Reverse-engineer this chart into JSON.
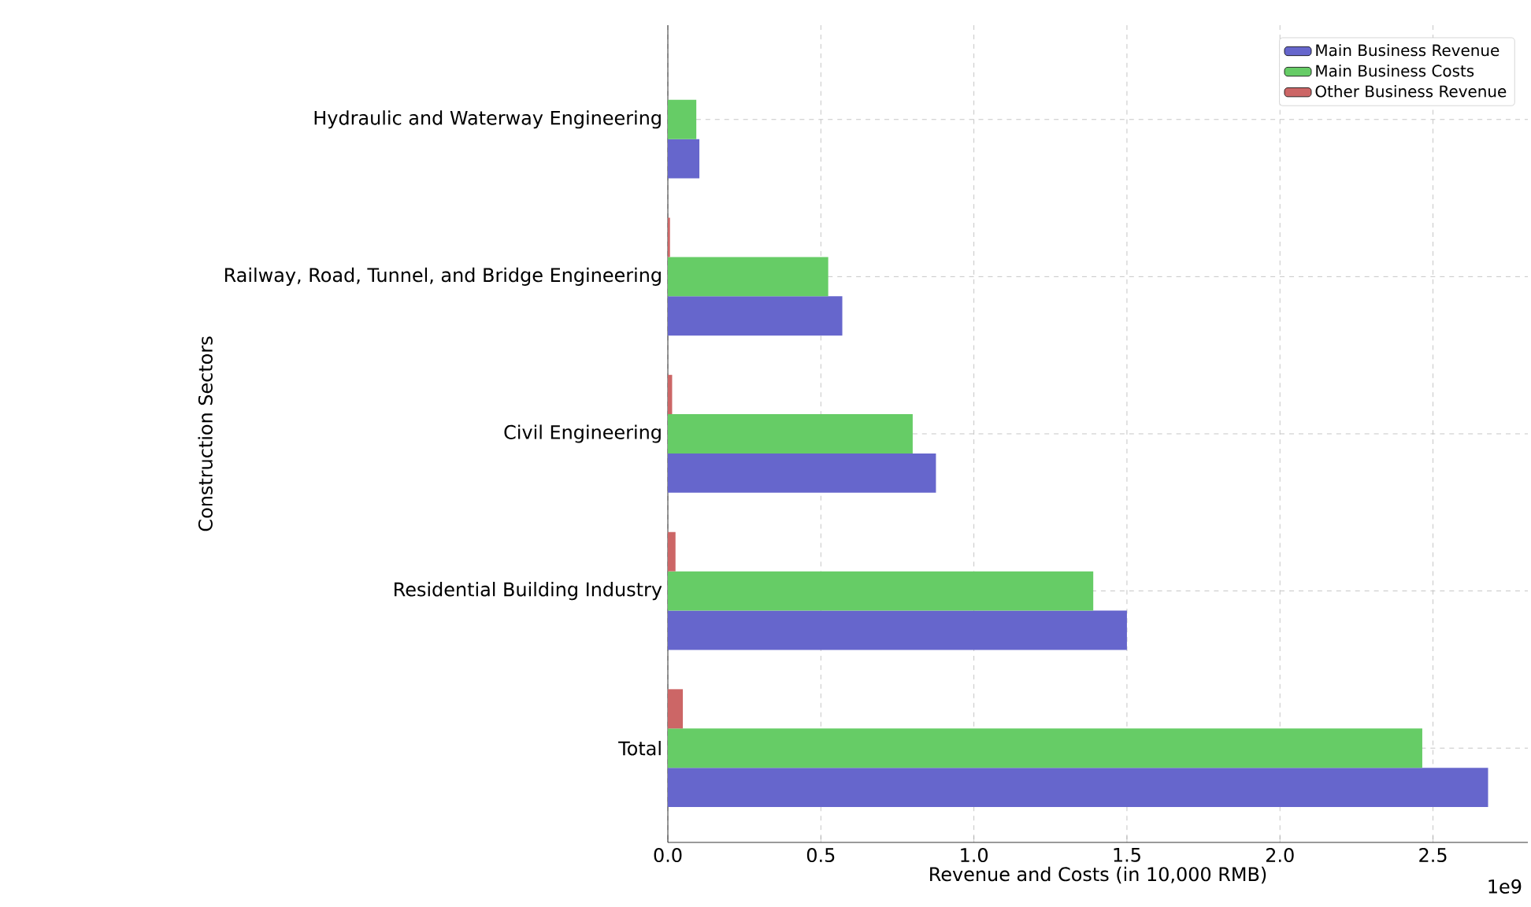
{
  "chart_data": {
    "type": "bar",
    "orientation": "horizontal",
    "categories": [
      "Hydraulic and Waterway Engineering",
      "Railway, Road, Tunnel, and Bridge Engineering",
      "Civil Engineering",
      "Residential Building Industry",
      "Total"
    ],
    "series": [
      {
        "name": "Main Business Revenue",
        "color": "#6666cc",
        "values": [
          0.103,
          0.57,
          0.876,
          1.5,
          2.68
        ]
      },
      {
        "name": "Main Business Costs",
        "color": "#66cc66",
        "values": [
          0.093,
          0.524,
          0.8,
          1.39,
          2.465
        ]
      },
      {
        "name": "Other Business Revenue",
        "color": "#cc6666",
        "values": [
          null,
          0.007,
          0.014,
          0.025,
          0.049
        ]
      }
    ],
    "xlabel": "Revenue and Costs (in 10,000 RMB)",
    "ylabel": "Construction Sectors",
    "xlim": [
      0,
      2.81
    ],
    "xticks": [
      {
        "value": 0,
        "label": "0.0"
      },
      0.5,
      {
        "value": 1,
        "label": "1.0"
      },
      1.5,
      {
        "value": 2,
        "label": "2.0"
      },
      2.5
    ],
    "annotations": [
      "1e9"
    ],
    "grid": true,
    "legend": "top right"
  }
}
